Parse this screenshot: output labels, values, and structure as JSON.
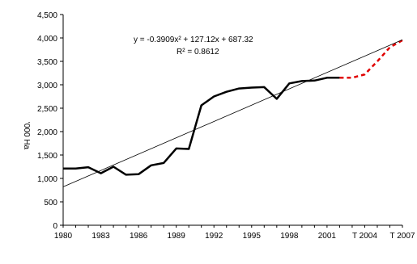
{
  "chart_data": {
    "type": "line",
    "title": "",
    "xlabel": "",
    "ylabel": "'000 Ha",
    "ylim": [
      0,
      4500
    ],
    "yticks": [
      "0",
      "500",
      "1,000",
      "1,500",
      "2,000",
      "2,500",
      "3,000",
      "3,500",
      "4,000",
      "4,500"
    ],
    "ytick_values": [
      0,
      500,
      1000,
      1500,
      2000,
      2500,
      3000,
      3500,
      4000,
      4500
    ],
    "xlim": [
      1980,
      2007
    ],
    "xticks": [
      {
        "label": "1980",
        "x": 1980
      },
      {
        "label": "1983",
        "x": 1983
      },
      {
        "label": "1986",
        "x": 1986
      },
      {
        "label": "1989",
        "x": 1989
      },
      {
        "label": "1992",
        "x": 1992
      },
      {
        "label": "1995",
        "x": 1995
      },
      {
        "label": "1998",
        "x": 1998
      },
      {
        "label": "2001",
        "x": 2001
      },
      {
        "label": "T 2004",
        "x": 2004
      },
      {
        "label": "T 2007",
        "x": 2007
      }
    ],
    "grid": false,
    "legend": "none",
    "series": [
      {
        "style": "solid",
        "color": "#000000",
        "x": [
          1980,
          1981,
          1982,
          1983,
          1984,
          1985,
          1986,
          1987,
          1988,
          1989,
          1990,
          1991,
          1992,
          1993,
          1994,
          1995,
          1996,
          1997,
          1998,
          1999,
          2000,
          2001,
          2002
        ],
        "values": [
          1210,
          1210,
          1240,
          1110,
          1250,
          1080,
          1090,
          1280,
          1330,
          1640,
          1630,
          2560,
          2750,
          2850,
          2920,
          2940,
          2950,
          2700,
          3030,
          3080,
          3090,
          3150,
          3150
        ]
      },
      {
        "style": "dashed",
        "color": "#e00000",
        "x": [
          2002,
          2003,
          2004,
          2005,
          2006,
          2007
        ],
        "values": [
          3150,
          3150,
          3220,
          3500,
          3800,
          3950
        ]
      },
      {
        "style": "trendline",
        "color": "#000000",
        "x": [
          1980,
          2007
        ],
        "values": [
          820,
          3960
        ]
      }
    ],
    "annotations": {
      "equation": "y = -0.3909x² + 127.12x + 687.32",
      "r_squared": "R² = 0.8612"
    }
  }
}
